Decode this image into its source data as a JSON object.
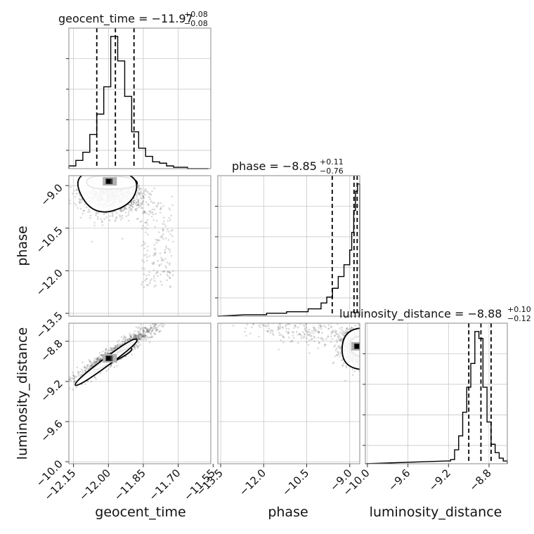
{
  "chart_data": {
    "type": "corner",
    "parameters": [
      {
        "name": "geocent_time",
        "title": {
          "main": "geocent_time = −11.97",
          "sup": "+0.08",
          "sub": "−0.08"
        },
        "ticks": [
          "−12.15",
          "−12.00",
          "−11.85",
          "−11.70",
          "−11.55"
        ],
        "tick_values": [
          -12.15,
          -12.0,
          -11.85,
          -11.7,
          -11.55
        ],
        "range": [
          -12.17,
          -11.56
        ],
        "quantiles": [
          -12.05,
          -11.97,
          -11.89
        ],
        "hist_bins": [
          -12.17,
          -12.14,
          -12.11,
          -12.08,
          -12.05,
          -12.02,
          -11.99,
          -11.96,
          -11.93,
          -11.9,
          -11.87,
          -11.84,
          -11.81,
          -11.78,
          -11.75,
          -11.72,
          -11.69,
          -11.66,
          -11.63,
          -11.6,
          -11.57
        ],
        "hist_values": [
          2,
          6,
          12,
          25,
          40,
          60,
          97,
          79,
          53,
          27,
          15,
          9,
          5,
          4,
          2,
          1,
          1,
          0,
          0,
          0
        ]
      },
      {
        "name": "phase",
        "title": {
          "main": "phase = −8.85",
          "sup": "+0.11",
          "sub": "−0.76"
        },
        "ticks": [
          "−13.5",
          "−12.0",
          "−10.5",
          "−9.0"
        ],
        "tick_values": [
          -13.5,
          -12.0,
          -10.5,
          -9.0
        ],
        "range": [
          -13.6,
          -8.65
        ],
        "quantiles": [
          -9.61,
          -8.85,
          -8.74
        ],
        "hist_bins": [
          -12.65,
          -11.9,
          -11.2,
          -10.45,
          -10.0,
          -9.8,
          -9.6,
          -9.4,
          -9.2,
          -9.0,
          -8.93,
          -8.86,
          -8.8,
          -8.73,
          -8.65
        ],
        "hist_values": [
          1,
          2,
          3,
          5,
          9,
          13,
          19,
          27,
          35,
          45,
          57,
          72,
          85,
          90
        ]
      },
      {
        "name": "luminosity_distance",
        "title": {
          "main": "luminosity_distance = −8.88",
          "sup": "+0.10",
          "sub": "−0.12"
        },
        "ticks": [
          "−10.0",
          "−9.6",
          "−9.2",
          "−8.8"
        ],
        "tick_values": [
          -10.0,
          -9.6,
          -9.2,
          -8.8
        ],
        "range": [
          -10.02,
          -8.62
        ],
        "quantiles": [
          -9.0,
          -8.88,
          -8.78
        ],
        "hist_bins": [
          -9.22,
          -9.18,
          -9.14,
          -9.1,
          -9.06,
          -9.02,
          -8.98,
          -8.94,
          -8.9,
          -8.86,
          -8.82,
          -8.78,
          -8.74,
          -8.7,
          -8.66,
          -8.62
        ],
        "hist_values": [
          2,
          3,
          10,
          20,
          37,
          55,
          72,
          95,
          90,
          55,
          30,
          14,
          8,
          4,
          2
        ]
      }
    ],
    "pairs": [
      {
        "x": "geocent_time",
        "y": "phase",
        "mode_x": -12.0,
        "mode_y": -8.85
      },
      {
        "x": "geocent_time",
        "y": "luminosity_distance",
        "mode_x": -12.0,
        "mode_y": -8.97
      },
      {
        "x": "phase",
        "y": "luminosity_distance",
        "mode_x": -8.75,
        "mode_y": -8.85
      }
    ],
    "grid": true,
    "colors": {
      "ink": "#000000",
      "frame": "#8a8a8a",
      "grid": "#c8c8c8",
      "samples": "#555555"
    }
  }
}
